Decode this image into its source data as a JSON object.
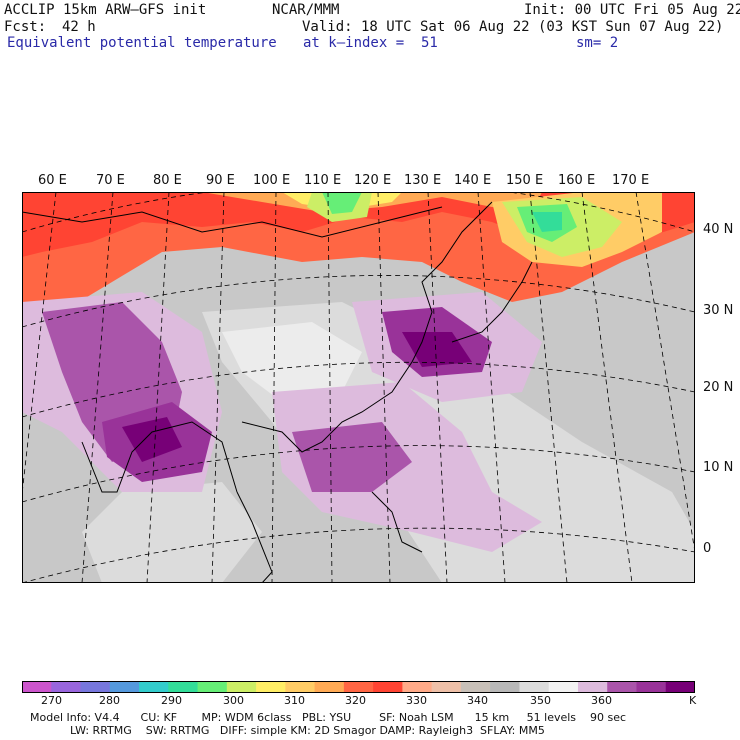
{
  "header": {
    "model": "ACCLIP 15km ARW–GFS init",
    "center": "NCAR/MMM",
    "init": "Init: 00 UTC Fri 05 Aug 22",
    "fcst_label": "Fcst:",
    "fcst_value": "42 h",
    "valid": "Valid: 18 UTC Sat 06 Aug 22 (03 KST Sun 07 Aug 22)",
    "field": "Equivalent potential temperature",
    "level": "at k–index =  51",
    "smooth": "sm= 2"
  },
  "map": {
    "lon_labels": [
      "60 E",
      "70 E",
      "80 E",
      "90 E",
      "100 E",
      "110 E",
      "120 E",
      "130 E",
      "140 E",
      "150 E",
      "160 E",
      "170 E"
    ],
    "lat_labels": [
      "40 N",
      "30 N",
      "20 N",
      "10 N",
      "0"
    ]
  },
  "colorbar": {
    "unit": "K",
    "ticks": [
      "270",
      "280",
      "290",
      "300",
      "310",
      "320",
      "330",
      "340",
      "350",
      "360"
    ],
    "colors": [
      "#cc55cc",
      "#9966dd",
      "#7777dd",
      "#5599dd",
      "#33cccc",
      "#33dd99",
      "#66ee77",
      "#ccee66",
      "#ffee66",
      "#ffcc66",
      "#ffaa55",
      "#ff6644",
      "#ff4433",
      "#ffaa88",
      "#eec0a8",
      "#c8c0b8",
      "#b8b8b8",
      "#dcdcdc",
      "#f2f2f2",
      "#ddbbdd",
      "#aa55aa",
      "#993399",
      "#770077"
    ]
  },
  "footer": {
    "line1": "Model Info: V4.4      CU: KF       MP: WDM 6class   PBL: YSU        SF: Noah LSM      15 km     51 levels    90 sec",
    "line2": "LW: RRTMG    SW: RRTMG   DIFF: simple KM: 2D Smagor DAMP: Rayleigh3  SFLAY: MM5"
  }
}
